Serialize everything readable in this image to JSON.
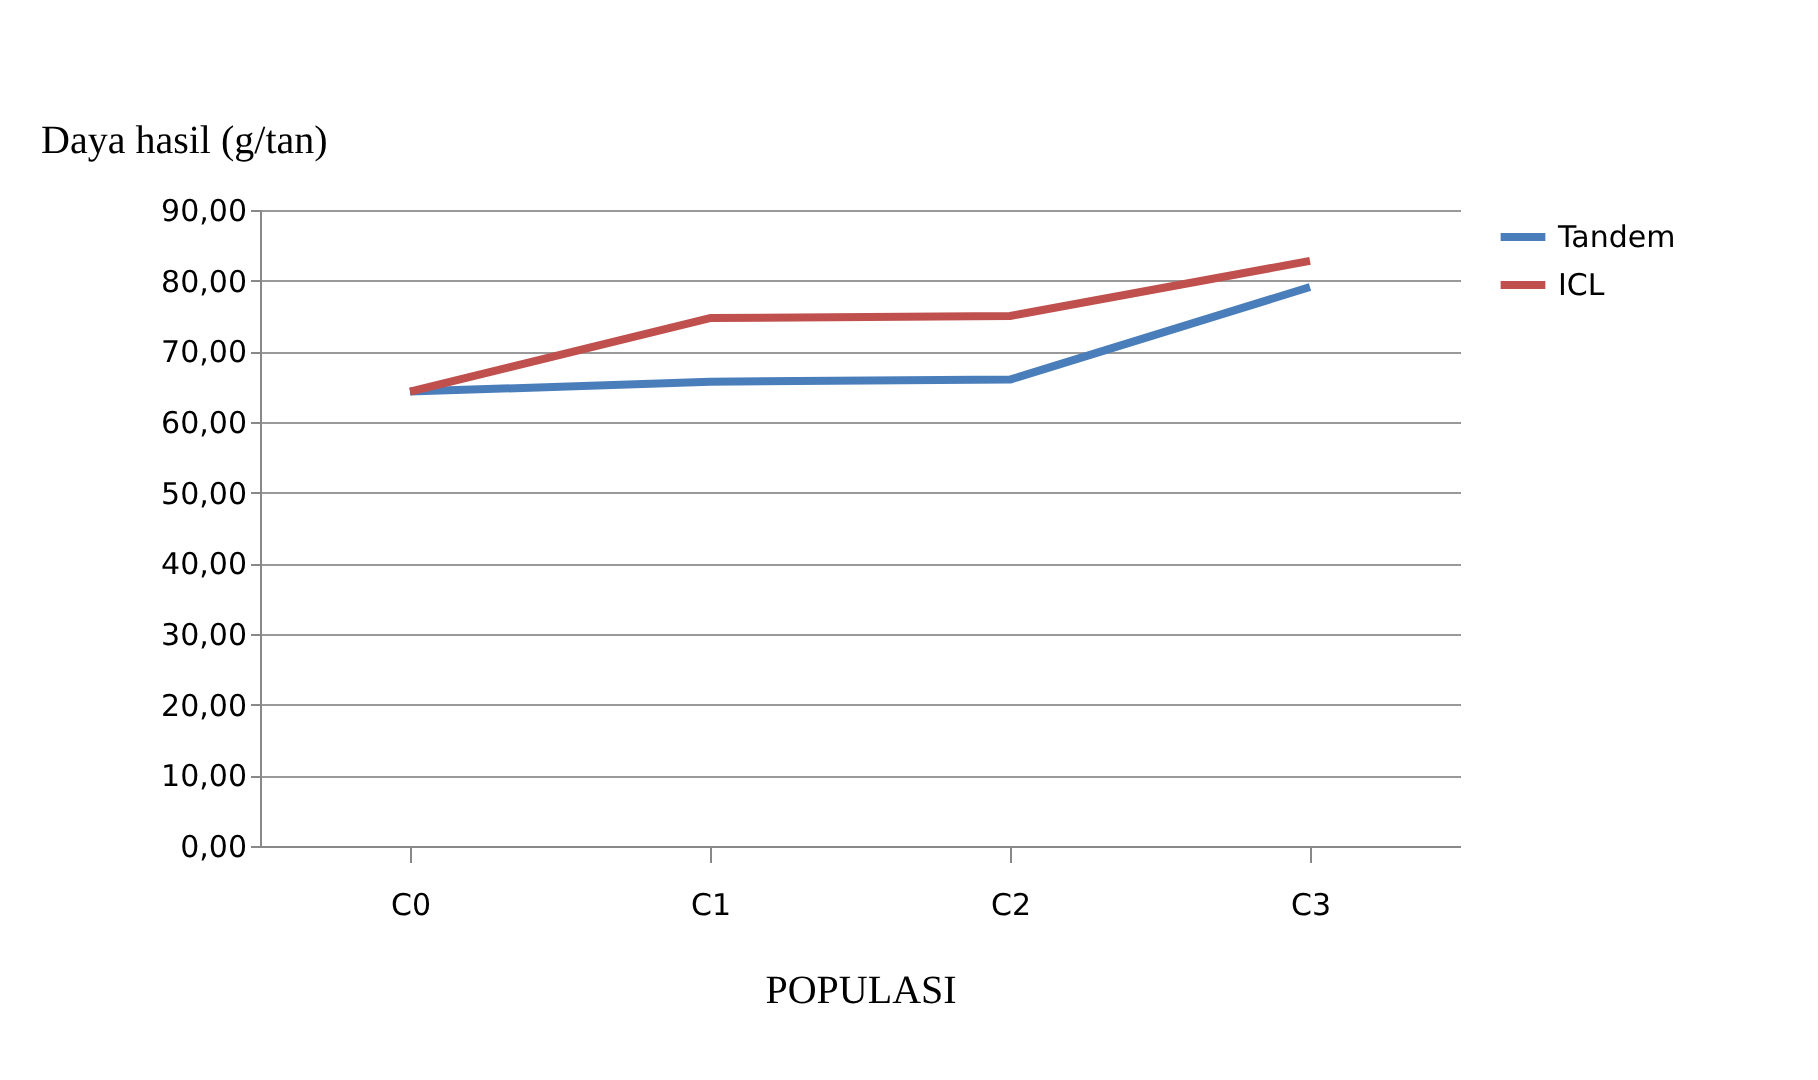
{
  "chart_data": {
    "type": "line",
    "xlabel": "POPULASI",
    "ylabel": "Daya hasil (g/tan)",
    "categories": [
      "C0",
      "C1",
      "C2",
      "C3"
    ],
    "series": [
      {
        "name": "Tandem",
        "color": "#4a7ebb",
        "values": [
          64.3,
          65.7,
          66.0,
          79.1
        ]
      },
      {
        "name": "ICL",
        "color": "#c0504d",
        "values": [
          64.3,
          74.7,
          75.0,
          82.8
        ]
      }
    ],
    "ylim": [
      0,
      90
    ],
    "yticks": [
      {
        "value": 0,
        "label": "0,00"
      },
      {
        "value": 10,
        "label": "10,00"
      },
      {
        "value": 20,
        "label": "20,00"
      },
      {
        "value": 30,
        "label": "30,00"
      },
      {
        "value": 40,
        "label": "40,00"
      },
      {
        "value": 50,
        "label": "50,00"
      },
      {
        "value": 60,
        "label": "60,00"
      },
      {
        "value": 70,
        "label": "70,00"
      },
      {
        "value": 80,
        "label": "80,00"
      },
      {
        "value": 90,
        "label": "90,00"
      }
    ],
    "grid": "y",
    "legend": "right",
    "marker": "none",
    "line_style": "solid"
  }
}
